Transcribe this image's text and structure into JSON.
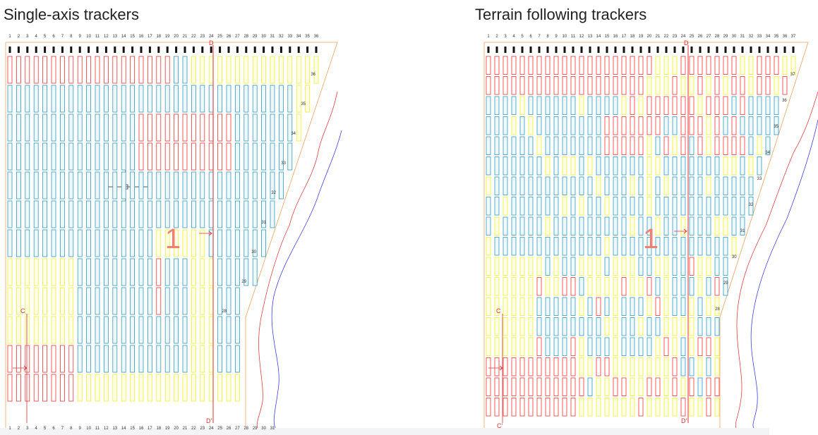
{
  "panels": [
    {
      "title": "Single-axis trackers",
      "columns": [
        "1",
        "2",
        "3",
        "4",
        "5",
        "6",
        "7",
        "8",
        "9",
        "10",
        "11",
        "12",
        "13",
        "14",
        "15",
        "16",
        "17",
        "18",
        "19",
        "20",
        "21",
        "22",
        "23",
        "24",
        "25",
        "26",
        "27",
        "28",
        "29",
        "30",
        "31",
        "32",
        "33",
        "34",
        "35",
        "36"
      ],
      "bottom_columns": [
        "1",
        "2",
        "3",
        "4",
        "5",
        "6",
        "7",
        "8",
        "9",
        "10",
        "11",
        "12",
        "13",
        "14",
        "15",
        "16",
        "17",
        "18",
        "19",
        "20",
        "21",
        "22",
        "23",
        "24",
        "25",
        "26",
        "27",
        "28",
        "29",
        "30",
        "31"
      ],
      "row_labels": [
        "36",
        "35",
        "34",
        "33",
        "32",
        "31",
        "30",
        "29",
        "28"
      ],
      "zone": "1",
      "c": "C",
      "d": "D",
      "d_prime": "D'"
    },
    {
      "title": "Terrain following trackers",
      "columns": [
        "1",
        "2",
        "3",
        "4",
        "5",
        "6",
        "7",
        "8",
        "9",
        "10",
        "11",
        "12",
        "13",
        "14",
        "15",
        "16",
        "17",
        "18",
        "19",
        "20",
        "21",
        "22",
        "23",
        "24",
        "25",
        "26",
        "27",
        "28",
        "29",
        "30",
        "31",
        "32",
        "33",
        "34",
        "35",
        "36",
        "37"
      ],
      "row_labels": [
        "37",
        "36",
        "35",
        "34",
        "33",
        "32",
        "31",
        "30",
        "29",
        "28"
      ],
      "zone": "1",
      "c": "C",
      "c_prime": "C'",
      "d": "D",
      "d_prime": "D'"
    }
  ]
}
